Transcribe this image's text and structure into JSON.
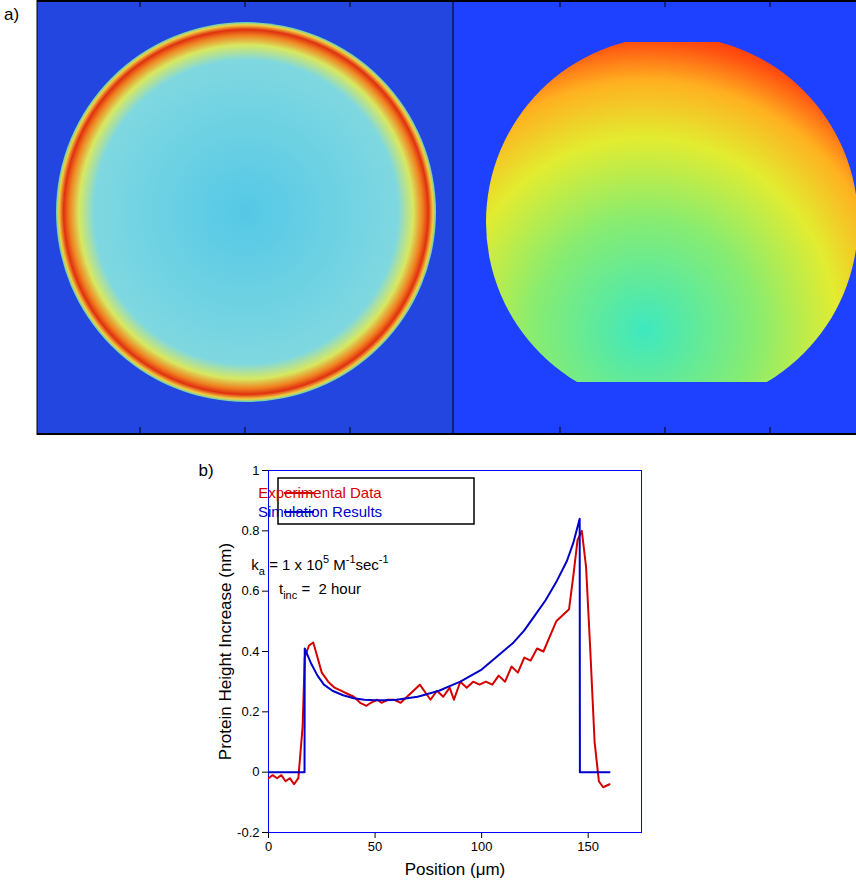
{
  "figure": {
    "panel_a": {
      "label": "a)"
    }
  },
  "chart_data": {
    "type": "line",
    "panel_label": "b)",
    "x_label": "Position (μm)",
    "y_label": "Protein Height Increase (nm)",
    "xlim": [
      0,
      175
    ],
    "xticks": [
      0,
      50,
      100,
      150
    ],
    "ylim": [
      -0.2,
      1
    ],
    "yticks": [
      -0.2,
      0,
      0.2,
      0.4,
      0.6,
      0.8,
      1
    ],
    "legend": "upper left",
    "annotations": [
      [
        {
          "text": "k"
        },
        {
          "sub": "a"
        },
        {
          "text": " = 1 x 10"
        },
        {
          "sup": "5"
        },
        {
          "text": " M"
        },
        {
          "sup": "-1"
        },
        {
          "text": "sec"
        },
        {
          "sup": "-1"
        }
      ],
      [
        {
          "text": "t"
        },
        {
          "sub": "inc"
        },
        {
          "text": " =  2 hour"
        }
      ]
    ],
    "series": [
      {
        "name": "Experimental Data",
        "color": "#d40000",
        "x": [
          0,
          2,
          4,
          6,
          8,
          10,
          12,
          14,
          16,
          17,
          19,
          21,
          23,
          25,
          28,
          31,
          34,
          37,
          40,
          43,
          46,
          48,
          51,
          53,
          56,
          59,
          62,
          65,
          68,
          71,
          74,
          76,
          79,
          82,
          85,
          87,
          90,
          93,
          96,
          99,
          102,
          105,
          108,
          111,
          114,
          117,
          120,
          123,
          126,
          129,
          132,
          135,
          138,
          141,
          143,
          145,
          147,
          149,
          151,
          153,
          155,
          157,
          160
        ],
        "values": [
          -0.02,
          -0.01,
          -0.02,
          -0.01,
          -0.03,
          -0.02,
          -0.04,
          -0.02,
          0.15,
          0.38,
          0.42,
          0.43,
          0.38,
          0.33,
          0.3,
          0.28,
          0.27,
          0.26,
          0.25,
          0.23,
          0.22,
          0.23,
          0.24,
          0.23,
          0.24,
          0.24,
          0.23,
          0.25,
          0.27,
          0.29,
          0.26,
          0.24,
          0.27,
          0.25,
          0.28,
          0.24,
          0.3,
          0.28,
          0.3,
          0.29,
          0.3,
          0.29,
          0.32,
          0.3,
          0.35,
          0.33,
          0.38,
          0.37,
          0.41,
          0.4,
          0.45,
          0.5,
          0.52,
          0.54,
          0.65,
          0.77,
          0.8,
          0.68,
          0.4,
          0.1,
          -0.03,
          -0.05,
          -0.04
        ]
      },
      {
        "name": "Simulation Results",
        "color": "#0000c8",
        "x": [
          0,
          16.9,
          17,
          20,
          23,
          26,
          30,
          35,
          40,
          45,
          50,
          55,
          60,
          65,
          70,
          75,
          80,
          85,
          90,
          95,
          100,
          105,
          110,
          115,
          120,
          125,
          130,
          135,
          140,
          143,
          146,
          146.1,
          160
        ],
        "values": [
          0,
          0,
          0.41,
          0.36,
          0.32,
          0.29,
          0.27,
          0.255,
          0.245,
          0.24,
          0.238,
          0.238,
          0.24,
          0.245,
          0.25,
          0.26,
          0.27,
          0.285,
          0.3,
          0.32,
          0.34,
          0.37,
          0.4,
          0.43,
          0.47,
          0.52,
          0.57,
          0.63,
          0.7,
          0.76,
          0.84,
          0,
          0
        ]
      }
    ]
  }
}
